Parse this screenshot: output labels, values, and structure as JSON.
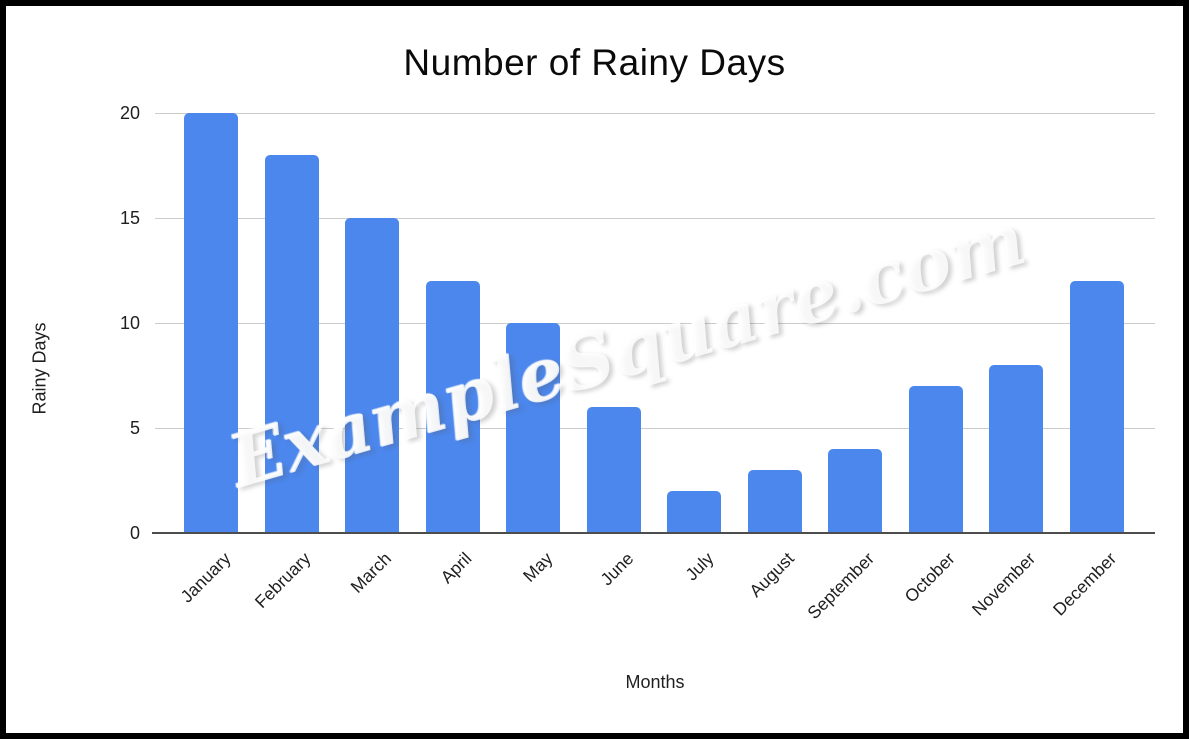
{
  "chart_data": {
    "type": "bar",
    "title": "Number of Rainy Days",
    "xlabel": "Months",
    "ylabel": "Rainy Days",
    "categories": [
      "January",
      "February",
      "March",
      "April",
      "May",
      "June",
      "July",
      "August",
      "September",
      "October",
      "November",
      "December"
    ],
    "values": [
      20,
      18,
      15,
      12,
      10,
      6,
      2,
      3,
      4,
      7,
      8,
      12
    ],
    "ylim": [
      0,
      20
    ],
    "yticks": [
      0,
      5,
      10,
      15,
      20
    ],
    "grid": true,
    "legend": "none",
    "bar_color": "#4c87ed",
    "gridline_color": "#cccccc",
    "axis_line_color": "#4d4d4d",
    "text_color": "#1f1f1f"
  },
  "watermark": {
    "text": "ExampleSquare.com"
  }
}
